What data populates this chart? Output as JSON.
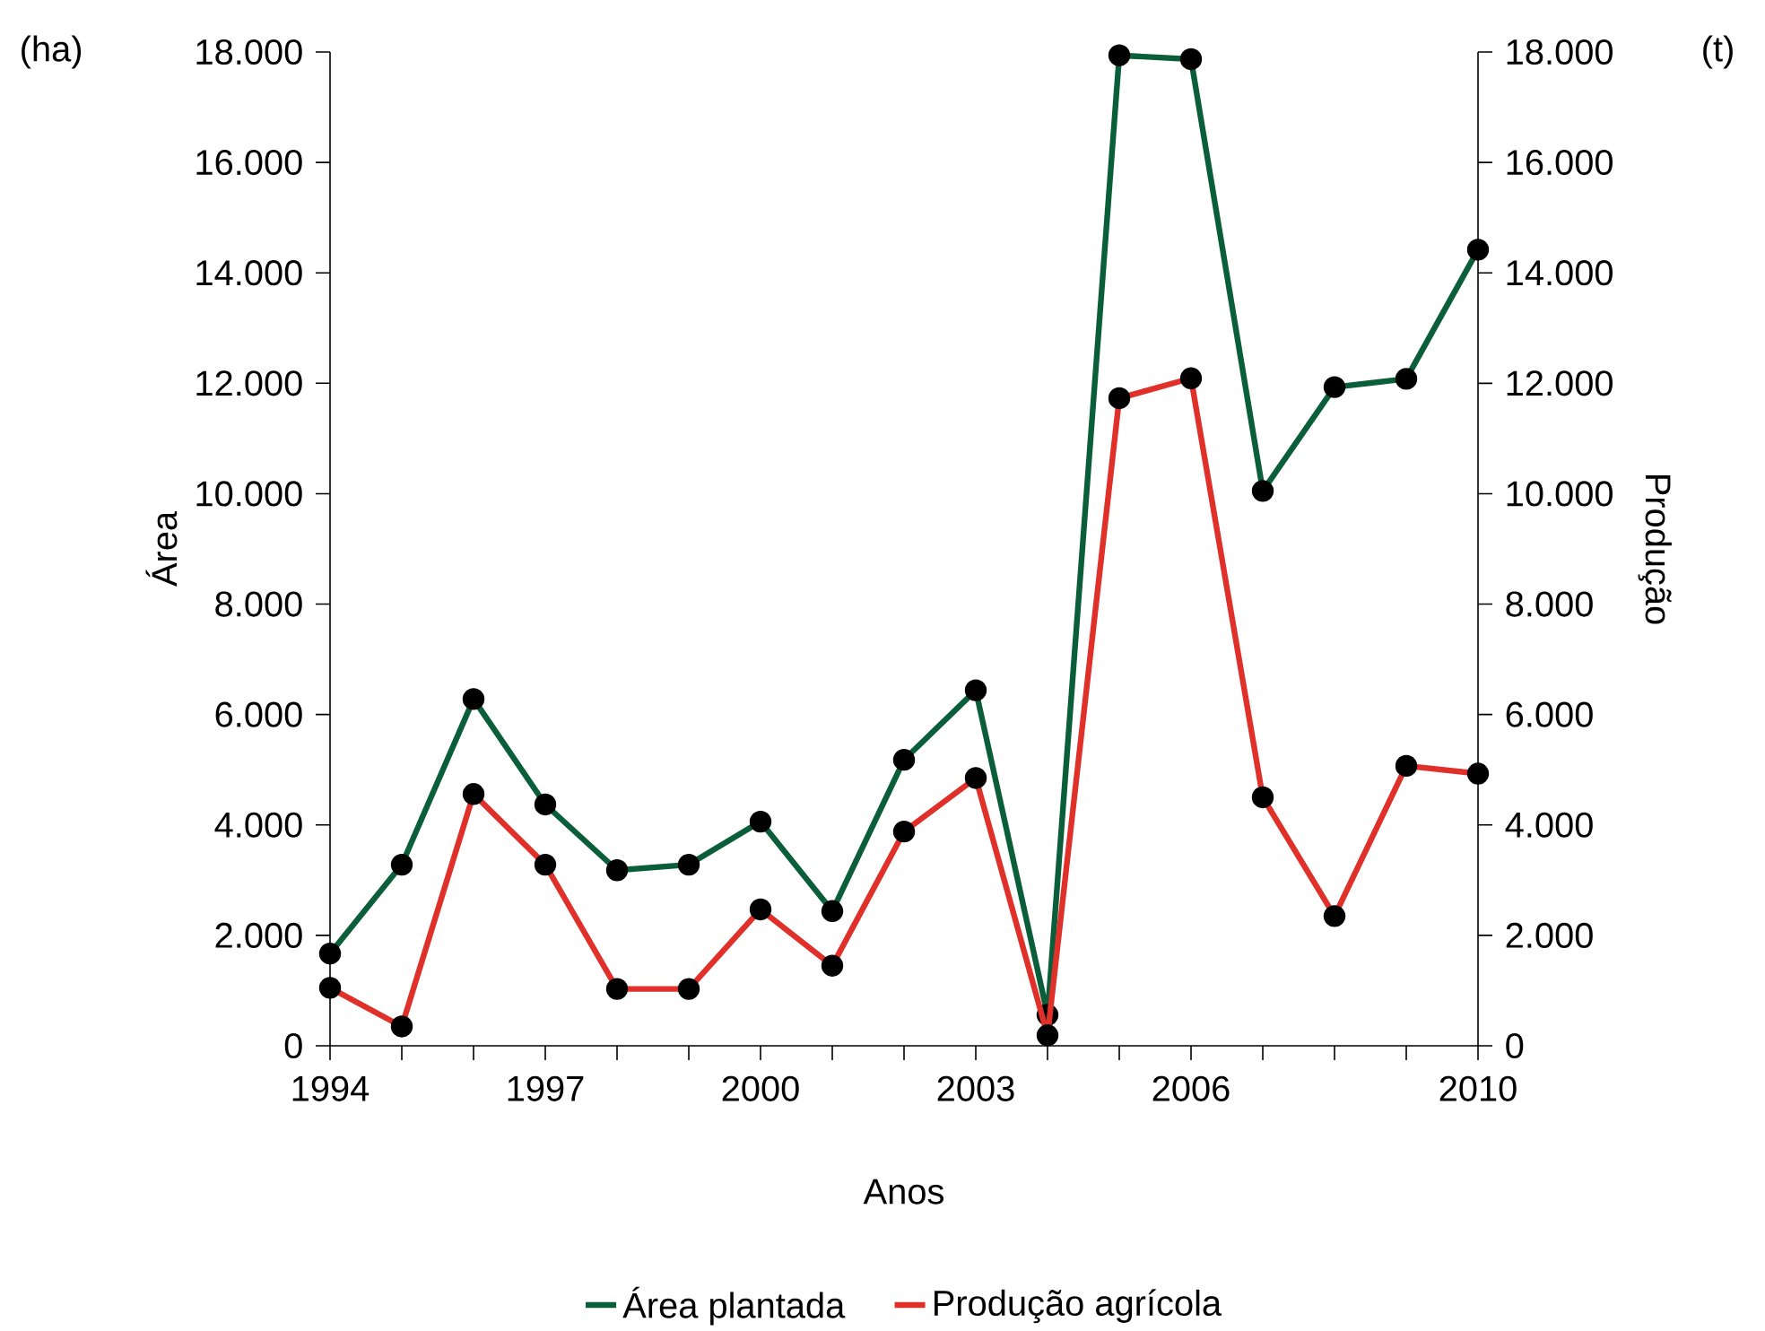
{
  "chart_data": {
    "type": "line",
    "xlabel": "Anos",
    "ylabel": "Área",
    "y2label": "Produção",
    "annotations": [
      "(ha)",
      "(t)"
    ],
    "x": [
      1994,
      1995,
      1996,
      1997,
      1998,
      1999,
      2000,
      2001,
      2002,
      2003,
      2004,
      2005,
      2006,
      2007,
      2008,
      2009,
      2010
    ],
    "series": [
      {
        "name": "Área plantada",
        "color": "#0b5e3a",
        "axis": "y",
        "values": [
          1670,
          3280,
          6280,
          4370,
          3180,
          3280,
          4060,
          2440,
          5180,
          6440,
          560,
          17940,
          17870,
          10050,
          11930,
          12080,
          14420
        ]
      },
      {
        "name": "Produção agrícola",
        "color": "#e0302a",
        "axis": "y2",
        "values": [
          1050,
          350,
          4560,
          3280,
          1030,
          1030,
          2470,
          1450,
          3880,
          4850,
          190,
          11730,
          12090,
          4500,
          2350,
          5070,
          4930
        ]
      }
    ],
    "xlim": [
      1994,
      2010
    ],
    "xticks": [
      1994,
      {
        "value": 1995,
        "label": null
      },
      {
        "value": 1996,
        "label": null
      },
      1997,
      {
        "value": 1998,
        "label": null
      },
      {
        "value": 1999,
        "label": null
      },
      2000,
      {
        "value": 2001,
        "label": null
      },
      {
        "value": 2002,
        "label": null
      },
      2003,
      {
        "value": 2004,
        "label": null
      },
      {
        "value": 2005,
        "label": null
      },
      2006,
      {
        "value": 2007,
        "label": null
      },
      {
        "value": 2008,
        "label": null
      },
      {
        "value": 2009,
        "label": null
      },
      2010
    ],
    "ylim": [
      0,
      18000
    ],
    "yticks": [
      0,
      {
        "value": 2000,
        "label": "2.000"
      },
      {
        "value": 4000,
        "label": "4.000"
      },
      {
        "value": 6000,
        "label": "6.000"
      },
      {
        "value": 8000,
        "label": "8.000"
      },
      {
        "value": 10000,
        "label": "10.000"
      },
      {
        "value": 12000,
        "label": "12.000"
      },
      {
        "value": 14000,
        "label": "14.000"
      },
      {
        "value": 16000,
        "label": "16.000"
      },
      {
        "value": 18000,
        "label": "18.000"
      }
    ],
    "y2lim": [
      0,
      18000
    ],
    "y2ticks": [
      0,
      {
        "value": 2000,
        "label": "2.000"
      },
      {
        "value": 4000,
        "label": "4.000"
      },
      {
        "value": 6000,
        "label": "6.000"
      },
      {
        "value": 8000,
        "label": "8.000"
      },
      {
        "value": 10000,
        "label": "10.000"
      },
      {
        "value": 12000,
        "label": "12.000"
      },
      {
        "value": 14000,
        "label": "14.000"
      },
      {
        "value": 16000,
        "label": "16.000"
      },
      {
        "value": 18000,
        "label": "18.000"
      }
    ],
    "legend": "bottom",
    "marker": "circle",
    "line_style": "solid",
    "grid": false
  }
}
